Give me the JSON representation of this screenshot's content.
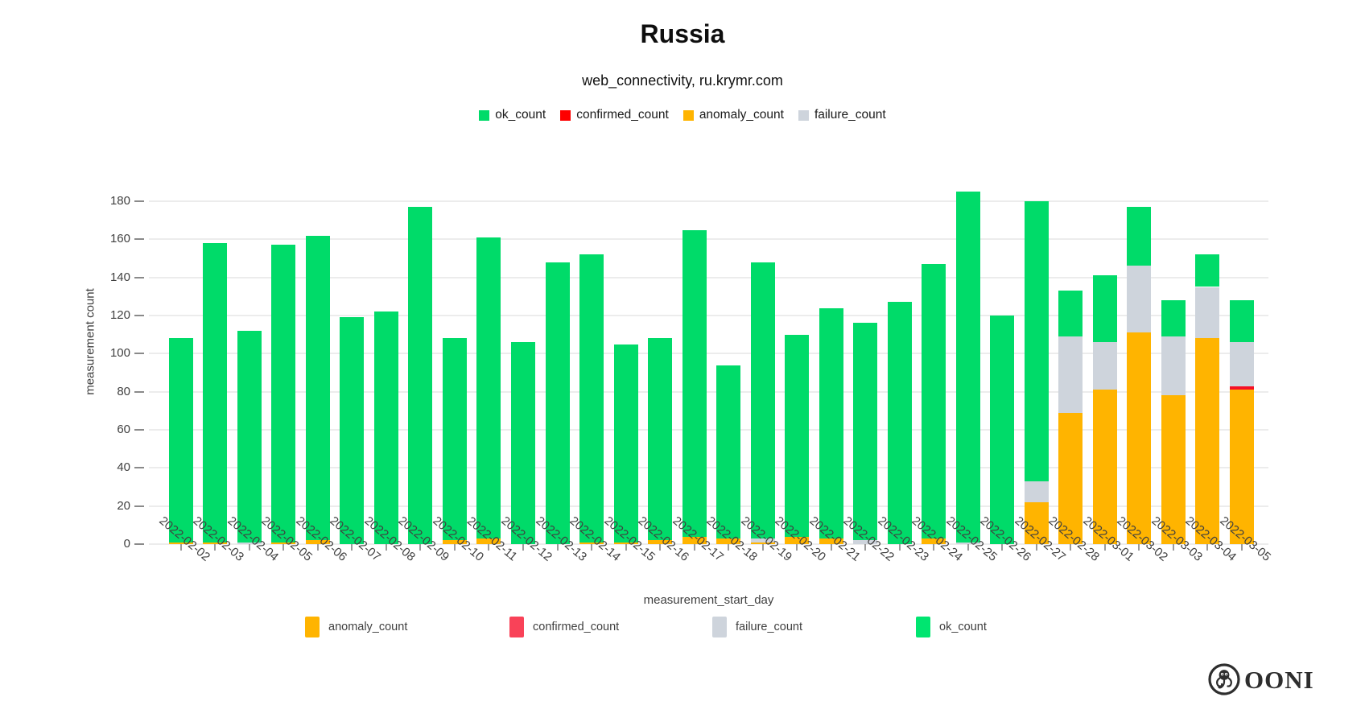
{
  "title": "Russia",
  "subtitle": "web_connectivity, ru.krymr.com",
  "top_legend": [
    {
      "label": "ok_count",
      "color": "#00db69"
    },
    {
      "label": "confirmed_count",
      "color": "#fe0000"
    },
    {
      "label": "anomaly_count",
      "color": "#ffb400"
    },
    {
      "label": "failure_count",
      "color": "#ced4dc"
    }
  ],
  "bottom_legend": [
    {
      "label": "anomaly_count",
      "color": "#ffb400"
    },
    {
      "label": "confirmed_count",
      "color": "#f94258"
    },
    {
      "label": "failure_count",
      "color": "#ced4dc"
    },
    {
      "label": "ok_count",
      "color": "#00e570"
    }
  ],
  "logo": {
    "text": "OONI"
  },
  "chart_data": {
    "type": "bar",
    "stacked": true,
    "title": "Russia",
    "subtitle": "web_connectivity, ru.krymr.com",
    "xlabel": "measurement_start_day",
    "ylabel": "measurement count",
    "ylim": [
      0,
      197
    ],
    "y_ticks": [
      0,
      20,
      40,
      60,
      80,
      100,
      120,
      140,
      160,
      180
    ],
    "grid": true,
    "legend_position": "top and bottom",
    "categories": [
      "2022-02-02",
      "2022-02-03",
      "2022-02-04",
      "2022-02-05",
      "2022-02-06",
      "2022-02-07",
      "2022-02-08",
      "2022-02-09",
      "2022-02-10",
      "2022-02-11",
      "2022-02-12",
      "2022-02-13",
      "2022-02-14",
      "2022-02-15",
      "2022-02-16",
      "2022-02-17",
      "2022-02-18",
      "2022-02-19",
      "2022-02-20",
      "2022-02-21",
      "2022-02-22",
      "2022-02-23",
      "2022-02-24",
      "2022-02-25",
      "2022-02-26",
      "2022-02-27",
      "2022-02-28",
      "2022-03-01",
      "2022-03-02",
      "2022-03-03",
      "2022-03-04",
      "2022-03-05"
    ],
    "series": [
      {
        "name": "anomaly_count",
        "color": "#ffb400",
        "values": [
          1,
          1,
          0,
          1,
          2,
          0,
          0,
          0,
          2,
          3,
          0,
          0,
          1,
          1,
          2,
          4,
          3,
          1,
          4,
          3,
          0,
          0,
          3,
          0,
          0,
          22,
          69,
          81,
          111,
          78,
          108,
          81
        ]
      },
      {
        "name": "confirmed_count",
        "color": "#f50f25",
        "values": [
          0,
          0,
          0,
          0,
          0,
          0,
          0,
          0,
          0,
          0,
          0,
          0,
          0,
          0,
          0,
          0,
          0,
          0,
          0,
          0,
          0,
          0,
          0,
          0,
          0,
          0,
          0,
          0,
          0,
          0,
          0,
          2
        ]
      },
      {
        "name": "failure_count",
        "color": "#ced4dc",
        "values": [
          0,
          0,
          1,
          0,
          0,
          0,
          0,
          0,
          0,
          0,
          0,
          0,
          0,
          0,
          0,
          0,
          0,
          2,
          0,
          0,
          2,
          0,
          0,
          1,
          0,
          11,
          40,
          25,
          35,
          31,
          27,
          23
        ]
      },
      {
        "name": "ok_count",
        "color": "#00db69",
        "values": [
          107,
          157,
          111,
          156,
          160,
          119,
          122,
          177,
          106,
          158,
          106,
          148,
          151,
          104,
          106,
          161,
          91,
          145,
          106,
          121,
          114,
          127,
          144,
          184,
          120,
          147,
          24,
          35,
          31,
          19,
          17,
          22
        ]
      }
    ],
    "totals": [
      108,
      158,
      112,
      157,
      162,
      119,
      122,
      177,
      108,
      161,
      106,
      148,
      152,
      105,
      108,
      165,
      94,
      148,
      110,
      124,
      116,
      127,
      147,
      185,
      120,
      180,
      133,
      141,
      177,
      128,
      152,
      128
    ]
  }
}
